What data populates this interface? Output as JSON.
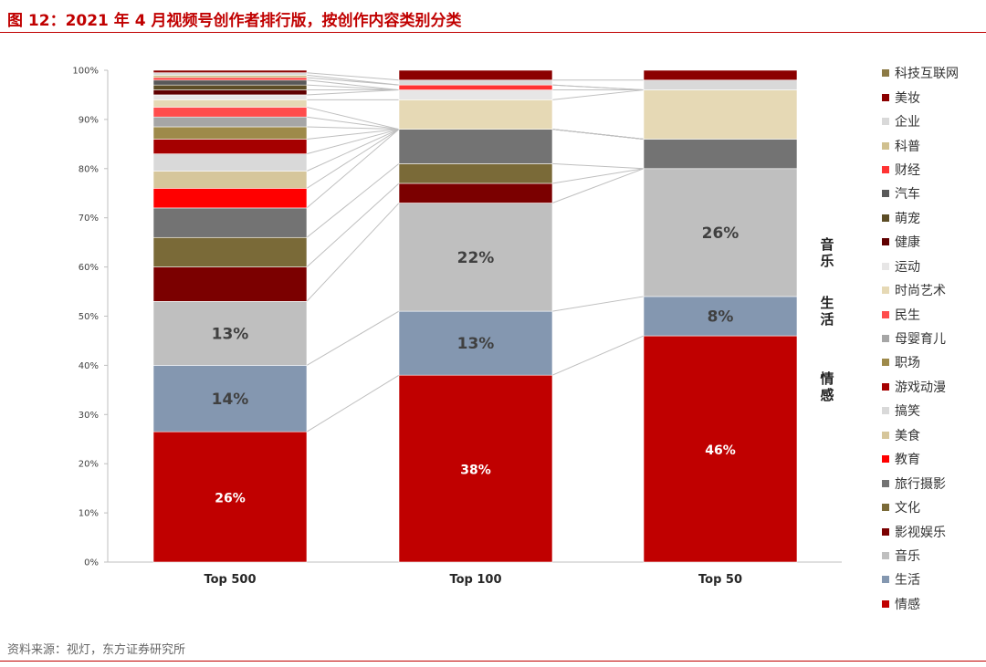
{
  "title": "图 12：2021 年 4 月视频号创作者排行版，按创作内容类别分类",
  "source": "资料来源：视灯，东方证券研究所",
  "side_labels": [
    "音乐",
    "生活",
    "情感"
  ],
  "colors": {
    "情感": "#c00000",
    "生活": "#8497b0",
    "音乐": "#bfbfbf",
    "影视娱乐": "#7b0000",
    "文化": "#7a6a38",
    "旅行摄影": "#737373",
    "教育": "#ff0000",
    "美食": "#d6c69b",
    "搞笑": "#d9d9d9",
    "游戏动漫": "#a50000",
    "职场": "#9e8a4a",
    "母婴育儿": "#a6a6a6",
    "民生": "#ff4d4d",
    "时尚艺术": "#e6d9b5",
    "运动": "#e7e6e6",
    "健康": "#600000",
    "萌宠": "#5c4d26",
    "汽车": "#595959",
    "财经": "#ff3333",
    "科普": "#d0c08f",
    "企业": "#d9d9d9",
    "美妆": "#8b0000",
    "科技互联网": "#8c7a45"
  },
  "chart_data": {
    "type": "bar",
    "stacked": true,
    "categories": [
      "Top 500",
      "Top 100",
      "Top 50"
    ],
    "ylim": [
      0,
      100
    ],
    "yticks": [
      "0%",
      "10%",
      "20%",
      "30%",
      "40%",
      "50%",
      "60%",
      "70%",
      "80%",
      "90%",
      "100%"
    ],
    "legend_order": [
      "科技互联网",
      "美妆",
      "企业",
      "科普",
      "财经",
      "汽车",
      "萌宠",
      "健康",
      "运动",
      "时尚艺术",
      "民生",
      "母婴育儿",
      "职场",
      "游戏动漫",
      "搞笑",
      "美食",
      "教育",
      "旅行摄影",
      "文化",
      "影视娱乐",
      "音乐",
      "生活",
      "情感"
    ],
    "series": [
      {
        "name": "情感",
        "values": [
          26.5,
          38,
          46
        ],
        "labels": [
          "26%",
          "38%",
          "46%"
        ]
      },
      {
        "name": "生活",
        "values": [
          13.5,
          13,
          8
        ],
        "labels": [
          "14%",
          "13%",
          "8%"
        ]
      },
      {
        "name": "音乐",
        "values": [
          13,
          22,
          26
        ],
        "labels": [
          "13%",
          "22%",
          "26%"
        ]
      },
      {
        "name": "影视娱乐",
        "values": [
          7,
          4,
          0
        ],
        "labels": [
          "",
          "",
          ""
        ]
      },
      {
        "name": "文化",
        "values": [
          6,
          4,
          0
        ],
        "labels": [
          "",
          "",
          ""
        ]
      },
      {
        "name": "旅行摄影",
        "values": [
          6,
          7,
          6
        ],
        "labels": [
          "",
          "",
          ""
        ]
      },
      {
        "name": "教育",
        "values": [
          4,
          0,
          0
        ],
        "labels": [
          "",
          "",
          ""
        ]
      },
      {
        "name": "美食",
        "values": [
          3.5,
          0,
          0
        ],
        "labels": [
          "",
          "",
          ""
        ]
      },
      {
        "name": "搞笑",
        "values": [
          3.5,
          0,
          0
        ],
        "labels": [
          "",
          "",
          ""
        ]
      },
      {
        "name": "游戏动漫",
        "values": [
          3,
          0,
          0
        ],
        "labels": [
          "",
          "",
          ""
        ]
      },
      {
        "name": "职场",
        "values": [
          2.5,
          0,
          0
        ],
        "labels": [
          "",
          "",
          ""
        ]
      },
      {
        "name": "母婴育儿",
        "values": [
          2,
          0,
          0
        ],
        "labels": [
          "",
          "",
          ""
        ]
      },
      {
        "name": "民生",
        "values": [
          2,
          0,
          0
        ],
        "labels": [
          "",
          "",
          ""
        ]
      },
      {
        "name": "时尚艺术",
        "values": [
          1.5,
          6,
          10
        ],
        "labels": [
          "",
          "",
          ""
        ]
      },
      {
        "name": "运动",
        "values": [
          1,
          2,
          0
        ],
        "labels": [
          "",
          "",
          ""
        ]
      },
      {
        "name": "健康",
        "values": [
          1,
          0,
          0
        ],
        "labels": [
          "",
          "",
          ""
        ]
      },
      {
        "name": "萌宠",
        "values": [
          1,
          0,
          0
        ],
        "labels": [
          "",
          "",
          ""
        ]
      },
      {
        "name": "汽车",
        "values": [
          1,
          0,
          0
        ],
        "labels": [
          "",
          "",
          ""
        ]
      },
      {
        "name": "财经",
        "values": [
          0.5,
          1,
          0
        ],
        "labels": [
          "",
          "",
          ""
        ]
      },
      {
        "name": "科普",
        "values": [
          0.5,
          0,
          0
        ],
        "labels": [
          "",
          "",
          ""
        ]
      },
      {
        "name": "企业",
        "values": [
          0.5,
          1,
          2
        ],
        "labels": [
          "",
          "",
          ""
        ]
      },
      {
        "name": "美妆",
        "values": [
          0.5,
          2,
          2
        ],
        "labels": [
          "",
          "",
          ""
        ]
      },
      {
        "name": "科技互联网",
        "values": [
          0,
          0,
          0
        ],
        "labels": [
          "",
          "",
          ""
        ]
      }
    ]
  }
}
